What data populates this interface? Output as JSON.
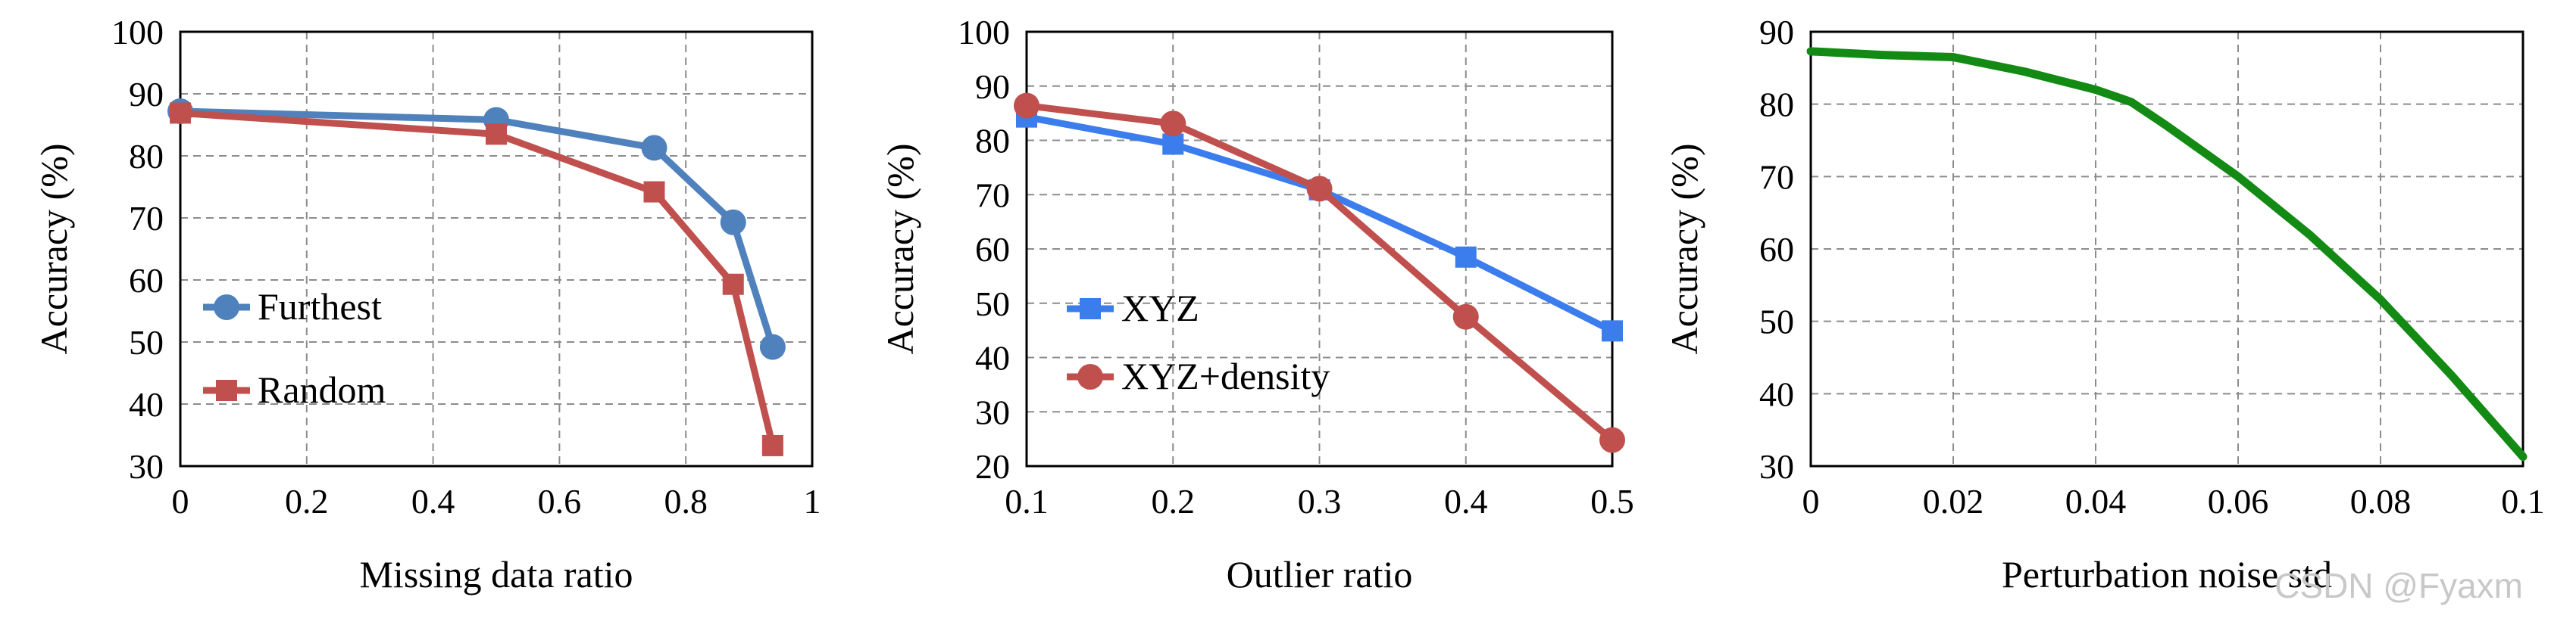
{
  "watermark": "CSDN @Fyaxm",
  "chart_data": [
    {
      "type": "line",
      "xlabel": "Missing data ratio",
      "ylabel": "Accuracy (%)",
      "xlim": [
        0,
        1
      ],
      "ylim": [
        30,
        100
      ],
      "xticks": [
        0,
        0.2,
        0.4,
        0.6,
        0.8,
        1
      ],
      "xtick_labels": [
        "0",
        "0.2",
        "0.4",
        "0.6",
        "0.8",
        "1"
      ],
      "yticks": [
        30,
        40,
        50,
        60,
        70,
        80,
        90,
        100
      ],
      "ytick_labels": [
        "30",
        "40",
        "50",
        "60",
        "70",
        "80",
        "90",
        "100"
      ],
      "grid": true,
      "legend_position": "left",
      "series": [
        {
          "name": "Furthest",
          "color": "#4f81bd",
          "marker": "circle",
          "x": [
            0,
            0.5,
            0.75,
            0.875,
            0.9375
          ],
          "y": [
            87.2,
            85.8,
            81.3,
            69.3,
            49.2
          ]
        },
        {
          "name": "Random",
          "color": "#c0504d",
          "marker": "square",
          "x": [
            0,
            0.5,
            0.75,
            0.875,
            0.9375
          ],
          "y": [
            86.9,
            83.5,
            74.2,
            59.3,
            33.3
          ]
        }
      ]
    },
    {
      "type": "line",
      "xlabel": "Outlier ratio",
      "ylabel": "Accuracy (%)",
      "xlim": [
        0.1,
        0.5
      ],
      "ylim": [
        20,
        100
      ],
      "xticks": [
        0.1,
        0.2,
        0.3,
        0.4,
        0.5
      ],
      "xtick_labels": [
        "0.1",
        "0.2",
        "0.3",
        "0.4",
        "0.5"
      ],
      "yticks": [
        20,
        30,
        40,
        50,
        60,
        70,
        80,
        90,
        100
      ],
      "ytick_labels": [
        "20",
        "30",
        "40",
        "50",
        "60",
        "70",
        "80",
        "90",
        "100"
      ],
      "grid": true,
      "legend_position": "bottom-left",
      "series": [
        {
          "name": "XYZ",
          "color": "#3c7ded",
          "marker": "square",
          "x": [
            0.1,
            0.2,
            0.3,
            0.4,
            0.5
          ],
          "y": [
            84.3,
            79.3,
            70.9,
            58.5,
            44.9
          ]
        },
        {
          "name": "XYZ+density",
          "color": "#c0504d",
          "marker": "circle",
          "x": [
            0.1,
            0.2,
            0.3,
            0.4,
            0.5
          ],
          "y": [
            86.4,
            83.1,
            71.1,
            47.5,
            24.8
          ]
        }
      ]
    },
    {
      "type": "line",
      "xlabel": "Perturbation noise std",
      "ylabel": "Accuracy (%)",
      "xlim": [
        0,
        0.1
      ],
      "ylim": [
        30,
        90
      ],
      "xticks": [
        0,
        0.02,
        0.04,
        0.06,
        0.08,
        0.1
      ],
      "xtick_labels": [
        "0",
        "0.02",
        "0.04",
        "0.06",
        "0.08",
        "0.1"
      ],
      "yticks": [
        30,
        40,
        50,
        60,
        70,
        80,
        90
      ],
      "ytick_labels": [
        "30",
        "40",
        "50",
        "60",
        "70",
        "80",
        "90"
      ],
      "grid": true,
      "series": [
        {
          "name": "Accuracy",
          "color": "#138a13",
          "marker": "none",
          "x": [
            0,
            0.01,
            0.02,
            0.03,
            0.04,
            0.045,
            0.05,
            0.06,
            0.07,
            0.08,
            0.09,
            0.1
          ],
          "y": [
            87.3,
            86.8,
            86.5,
            84.5,
            82.0,
            80.3,
            77.0,
            70.0,
            62.0,
            53.0,
            42.5,
            31.3
          ]
        }
      ]
    }
  ]
}
